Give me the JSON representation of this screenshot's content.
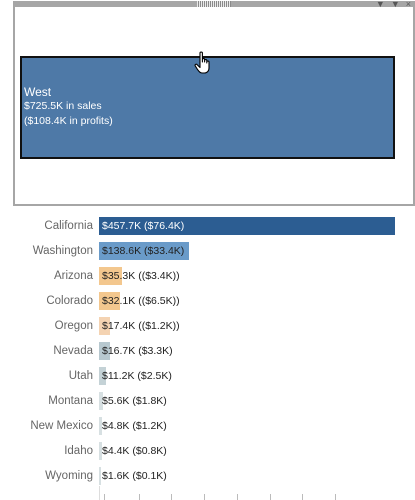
{
  "tooltip": {
    "region": "West",
    "sales_line": "$725.5K in sales",
    "profit_line": "($108.4K in profits)"
  },
  "controls": {
    "menu_icon": "chevron-down-icon",
    "filter_icon": "filter-icon",
    "close_label": "×"
  },
  "colors": {
    "highlight": "#2c5d92",
    "blue_mid": "#6a9bc9",
    "orange": "#f3c78e",
    "orange_light": "#f4d3b2",
    "grey_blue": "#b7c8cf",
    "pale": "#d7e0e2"
  },
  "chart_data": {
    "type": "bar",
    "orientation": "horizontal",
    "categories": [
      "California",
      "Washington",
      "Arizona",
      "Colorado",
      "Oregon",
      "Nevada",
      "Utah",
      "Montana",
      "New Mexico",
      "Idaho",
      "Wyoming"
    ],
    "sales_k": [
      457.7,
      138.6,
      35.3,
      32.1,
      17.4,
      16.7,
      11.2,
      5.6,
      4.8,
      4.4,
      1.6
    ],
    "labels": [
      "$457.7K ($76.4K)",
      "$138.6K ($33.4K)",
      "$35.3K (($3.4K))",
      "$32.1K (($6.5K))",
      "$17.4K (($1.2K))",
      "$16.7K ($3.3K)",
      "$11.2K ($2.5K)",
      "$5.6K ($1.8K)",
      "$4.8K ($1.2K)",
      "$4.4K ($0.8K)",
      "$1.6K ($0.1K)"
    ],
    "bar_colors": [
      "#2c5d92",
      "#6a9bc9",
      "#f3c78e",
      "#f3c78e",
      "#f4d3b2",
      "#b7c8cf",
      "#c4d2d6",
      "#d7e0e2",
      "#d7e0e2",
      "#d7e0e2",
      "#d7e0e2"
    ],
    "xlim": [
      0,
      457.7
    ],
    "grid": false
  }
}
